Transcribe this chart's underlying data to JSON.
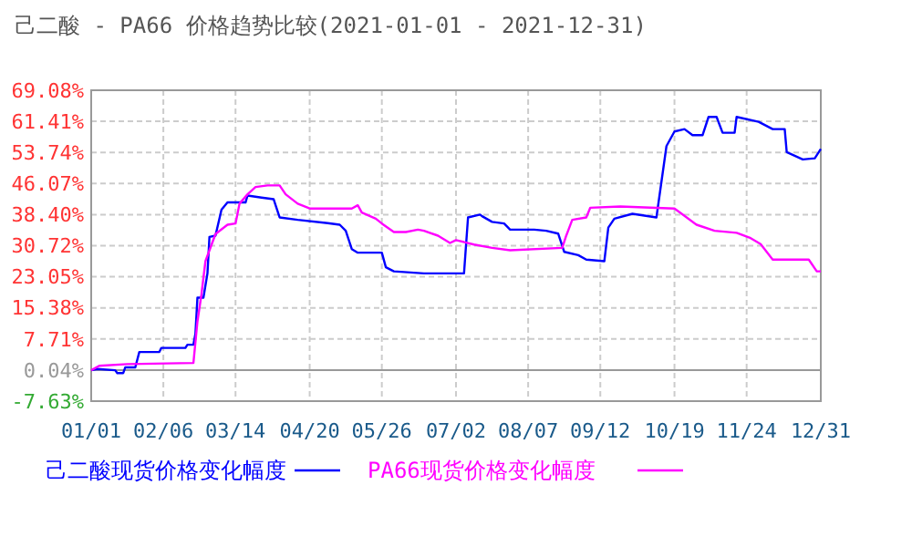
{
  "chart_data": {
    "type": "line",
    "title": "己二酸 - PA66 价格趋势比较(2021-01-01 - 2021-12-31)",
    "xlim": [
      "2021-01-01",
      "2021-12-31"
    ],
    "xticks": [
      {
        "value": "2021-01-01",
        "label": "01/01"
      },
      {
        "value": "2021-02-06",
        "label": "02/06"
      },
      {
        "value": "2021-03-14",
        "label": "03/14"
      },
      {
        "value": "2021-04-20",
        "label": "04/20"
      },
      {
        "value": "2021-05-26",
        "label": "05/26"
      },
      {
        "value": "2021-07-02",
        "label": "07/02"
      },
      {
        "value": "2021-08-07",
        "label": "08/07"
      },
      {
        "value": "2021-09-12",
        "label": "09/12"
      },
      {
        "value": "2021-10-19",
        "label": "10/19"
      },
      {
        "value": "2021-11-24",
        "label": "11/24"
      },
      {
        "value": "2021-12-31",
        "label": "12/31"
      }
    ],
    "ylim": [
      -7.63,
      69.08
    ],
    "yticks": [
      {
        "value": -7.63,
        "label": "-7.63%"
      },
      {
        "value": 0.04,
        "label": "0.04%"
      },
      {
        "value": 7.71,
        "label": "7.71%"
      },
      {
        "value": 15.38,
        "label": "15.38%"
      },
      {
        "value": 23.05,
        "label": "23.05%"
      },
      {
        "value": 30.72,
        "label": "30.72%"
      },
      {
        "value": 38.4,
        "label": "38.40%"
      },
      {
        "value": 46.07,
        "label": "46.07%"
      },
      {
        "value": 53.74,
        "label": "53.74%"
      },
      {
        "value": 61.41,
        "label": "61.41%"
      },
      {
        "value": 69.08,
        "label": "69.08%"
      }
    ],
    "grid": true,
    "legend": "bottom",
    "line_style": "solid",
    "marker": "none",
    "ref_lines": [
      {
        "axis": "y",
        "value": 0.04,
        "color": "#999999"
      }
    ],
    "series": [
      {
        "name": "己二酸现货价格变化幅度",
        "color": "#0000ff",
        "x": [
          "2021-01-01",
          "2021-01-04",
          "2021-01-13",
          "2021-01-14",
          "2021-01-17",
          "2021-01-18",
          "2021-01-23",
          "2021-01-25",
          "2021-02-04",
          "2021-02-05",
          "2021-02-17",
          "2021-02-18",
          "2021-02-21",
          "2021-02-22",
          "2021-02-23",
          "2021-02-26",
          "2021-02-28",
          "2021-03-01",
          "2021-03-04",
          "2021-03-07",
          "2021-03-10",
          "2021-03-19",
          "2021-03-20",
          "2021-03-27",
          "2021-04-02",
          "2021-04-03",
          "2021-04-05",
          "2021-04-14",
          "2021-04-29",
          "2021-05-05",
          "2021-05-08",
          "2021-05-11",
          "2021-05-14",
          "2021-05-26",
          "2021-05-28",
          "2021-06-01",
          "2021-06-16",
          "2021-07-06",
          "2021-07-08",
          "2021-07-14",
          "2021-07-15",
          "2021-07-20",
          "2021-07-26",
          "2021-07-29",
          "2021-08-10",
          "2021-08-16",
          "2021-08-22",
          "2021-08-25",
          "2021-09-01",
          "2021-09-05",
          "2021-09-14",
          "2021-09-16",
          "2021-09-19",
          "2021-09-28",
          "2021-10-10",
          "2021-10-15",
          "2021-10-19",
          "2021-10-24",
          "2021-10-28",
          "2021-11-02",
          "2021-11-05",
          "2021-11-09",
          "2021-11-12",
          "2021-11-18",
          "2021-11-19",
          "2021-11-30",
          "2021-12-07",
          "2021-12-13",
          "2021-12-14",
          "2021-12-22",
          "2021-12-28",
          "2021-12-31"
        ],
        "values": [
          0.0,
          0.3,
          0.0,
          -0.7,
          -0.7,
          0.7,
          0.7,
          4.5,
          4.5,
          5.5,
          5.5,
          6.3,
          6.3,
          9.0,
          17.9,
          17.9,
          23.9,
          32.9,
          33.2,
          39.6,
          41.4,
          41.4,
          43.1,
          42.6,
          42.2,
          40.7,
          37.7,
          37.1,
          36.3,
          35.9,
          34.4,
          29.9,
          29.0,
          29.0,
          25.4,
          24.4,
          23.9,
          23.9,
          37.7,
          38.4,
          38.0,
          36.6,
          36.2,
          34.7,
          34.7,
          34.4,
          33.7,
          29.2,
          28.4,
          27.3,
          26.9,
          35.2,
          37.4,
          38.6,
          37.7,
          55.3,
          58.9,
          59.5,
          58.0,
          58.0,
          62.5,
          62.5,
          58.6,
          58.6,
          62.5,
          61.3,
          59.5,
          59.5,
          53.8,
          52.0,
          52.3,
          54.6
        ]
      },
      {
        "name": "PA66现货价格变化幅度",
        "color": "#ff00ff",
        "x": [
          "2021-01-01",
          "2021-01-05",
          "2021-01-19",
          "2021-02-21",
          "2021-02-23",
          "2021-02-25",
          "2021-02-27",
          "2021-03-04",
          "2021-03-10",
          "2021-03-14",
          "2021-03-16",
          "2021-03-20",
          "2021-03-24",
          "2021-03-30",
          "2021-04-05",
          "2021-04-08",
          "2021-04-14",
          "2021-04-20",
          "2021-05-11",
          "2021-05-14",
          "2021-05-16",
          "2021-05-23",
          "2021-05-26",
          "2021-06-01",
          "2021-06-07",
          "2021-06-13",
          "2021-06-16",
          "2021-06-23",
          "2021-06-29",
          "2021-07-02",
          "2021-07-11",
          "2021-07-20",
          "2021-07-29",
          "2021-08-24",
          "2021-08-26",
          "2021-08-29",
          "2021-09-05",
          "2021-09-07",
          "2021-09-22",
          "2021-10-19",
          "2021-10-24",
          "2021-10-30",
          "2021-11-08",
          "2021-11-19",
          "2021-11-26",
          "2021-12-01",
          "2021-12-07",
          "2021-12-25",
          "2021-12-29",
          "2021-12-31"
        ],
        "values": [
          0,
          1.1,
          1.5,
          1.8,
          12.0,
          18.7,
          26.9,
          33.6,
          35.9,
          36.2,
          41.1,
          43.4,
          45.2,
          45.6,
          45.6,
          43.4,
          41.1,
          39.9,
          39.9,
          40.7,
          38.9,
          37.4,
          36.2,
          34.1,
          34.1,
          34.7,
          34.4,
          33.2,
          31.4,
          32.1,
          31.0,
          30.2,
          29.6,
          30.2,
          33.2,
          37.1,
          37.7,
          40.1,
          40.4,
          39.9,
          38.1,
          35.9,
          34.4,
          33.9,
          32.6,
          31.1,
          27.3,
          27.3,
          24.4,
          24.4
        ]
      }
    ]
  }
}
